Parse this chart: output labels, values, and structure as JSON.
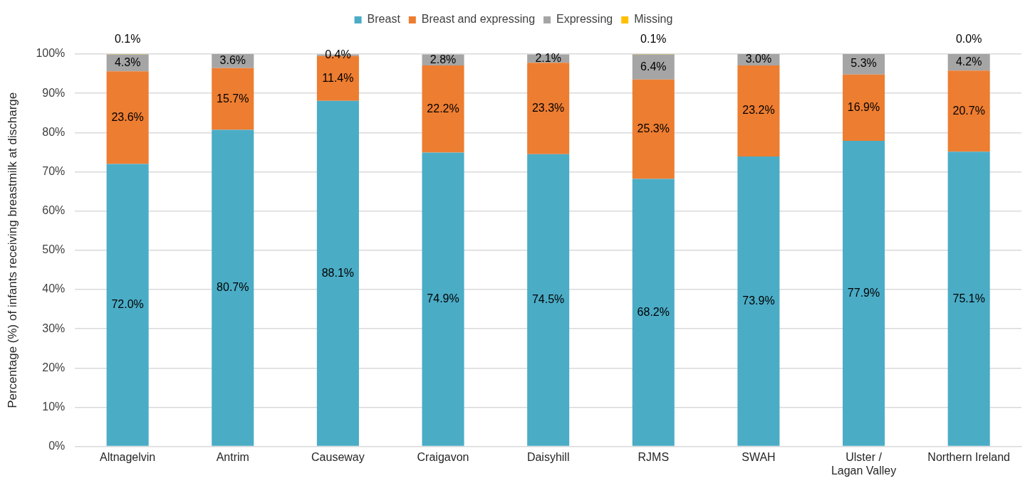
{
  "chart_data": {
    "type": "bar",
    "stacked": true,
    "categories": [
      "Altnagelvin",
      "Antrim",
      "Causeway",
      "Craigavon",
      "Daisyhill",
      "RJMS",
      "SWAH",
      "Ulster / Lagan Valley",
      "Northern Ireland"
    ],
    "series": [
      {
        "name": "Breast",
        "color": "#4bacc6",
        "values": [
          72.0,
          80.7,
          88.1,
          74.9,
          74.5,
          68.2,
          73.9,
          77.9,
          75.1
        ],
        "value_labels": [
          "72.0%",
          "80.7%",
          "88.1%",
          "74.9%",
          "74.5%",
          "68.2%",
          "73.9%",
          "77.9%",
          "75.1%"
        ]
      },
      {
        "name": "Breast and expressing",
        "color": "#ed7d31",
        "values": [
          23.6,
          15.7,
          11.4,
          22.2,
          23.3,
          25.3,
          23.2,
          16.9,
          20.7
        ],
        "value_labels": [
          "23.6%",
          "15.7%",
          "11.4%",
          "22.2%",
          "23.3%",
          "25.3%",
          "23.2%",
          "16.9%",
          "20.7%"
        ]
      },
      {
        "name": "Expressing",
        "color": "#a5a5a5",
        "values": [
          4.3,
          3.6,
          0.4,
          2.8,
          2.1,
          6.4,
          3.0,
          5.3,
          4.2
        ],
        "value_labels": [
          "4.3%",
          "3.6%",
          "0.4%",
          "2.8%",
          "2.1%",
          "6.4%",
          "3.0%",
          "5.3%",
          "4.2%"
        ]
      },
      {
        "name": "Missing",
        "color": "#ffc000",
        "values": [
          0.1,
          null,
          null,
          null,
          null,
          0.1,
          null,
          null,
          0.0
        ],
        "value_labels": [
          "0.1%",
          null,
          null,
          null,
          null,
          "0.1%",
          null,
          null,
          "0.0%"
        ]
      }
    ],
    "ylabel": "Percentage (%) of infants receiving breastmilk at discharge",
    "ylim": [
      0,
      100
    ],
    "yticks": [
      {
        "value": 0,
        "label": "0%"
      },
      {
        "value": 10,
        "label": "10%"
      },
      {
        "value": 20,
        "label": "20%"
      },
      {
        "value": 30,
        "label": "30%"
      },
      {
        "value": 40,
        "label": "40%"
      },
      {
        "value": 50,
        "label": "50%"
      },
      {
        "value": 60,
        "label": "60%"
      },
      {
        "value": 70,
        "label": "70%"
      },
      {
        "value": 80,
        "label": "80%"
      },
      {
        "value": 90,
        "label": "90%"
      },
      {
        "value": 100,
        "label": "100%"
      }
    ],
    "grid": "y",
    "legend": "top"
  }
}
